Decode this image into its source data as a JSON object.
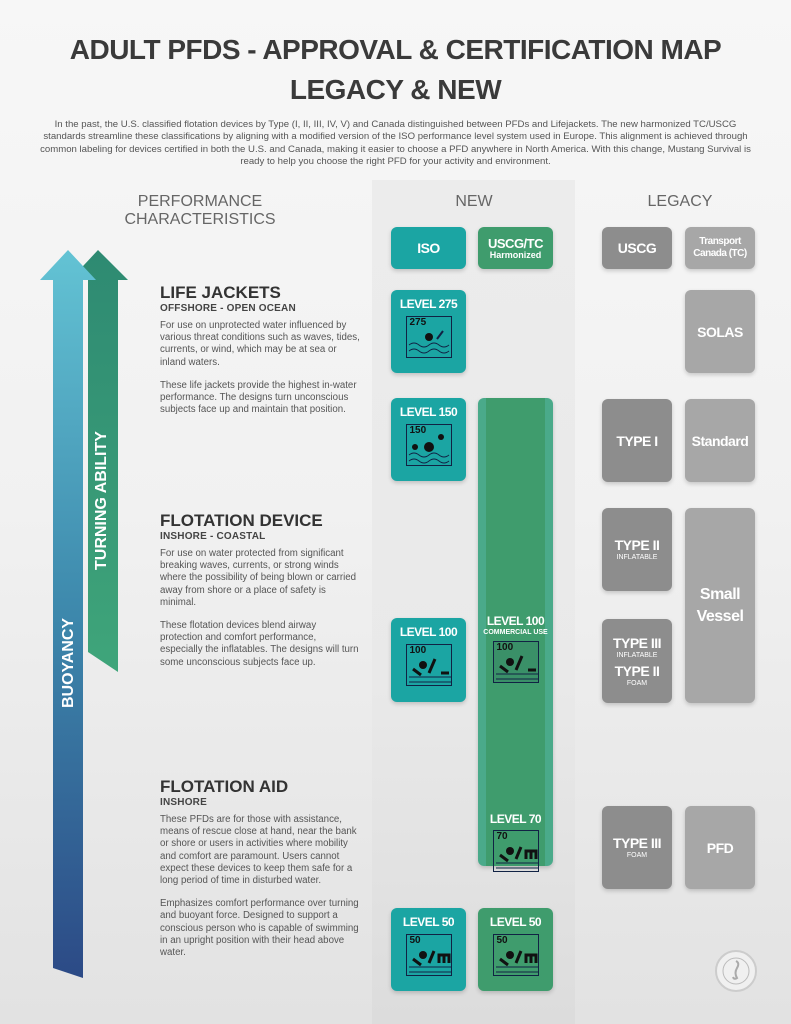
{
  "title": {
    "line1": "ADULT PFDS - APPROVAL & CERTIFICATION MAP",
    "line2": "LEGACY & NEW"
  },
  "intro": "In the past, the U.S. classified flotation devices by Type (I, II, III, IV, V) and Canada distinguished between PFDs and Lifejackets. The new harmonized TC/USCG standards streamline these classifications by aligning with a modified version of the ISO performance level system used in Europe. This alignment is achieved through common labeling for devices certified in both the U.S. and Canada, making it easier to choose a PFD anywhere in North America. With this change, Mustang Survival is ready to help you choose the right PFD for your activity and environment.",
  "headers": {
    "performance": "PERFORMANCE CHARACTERISTICS",
    "new": "NEW",
    "legacy": "LEGACY"
  },
  "arrows": {
    "buoyancy": "BUOYANCY",
    "turning": "TURNING ABILITY"
  },
  "sections": [
    {
      "title": "LIFE JACKETS",
      "subtitle": "OFFSHORE - OPEN OCEAN",
      "p1": "For use on unprotected water influenced by various threat conditions such as waves, tides, currents, or wind, which may be at sea or inland waters.",
      "p2": "These life jackets provide the highest in-water performance. The designs turn unconscious subjects face up and maintain that position."
    },
    {
      "title": "FLOTATION DEVICE",
      "subtitle": "INSHORE - COASTAL",
      "p1": "For use on water protected from significant breaking waves, currents, or strong winds where the possibility of being blown or carried away from shore or a place of safety is minimal.",
      "p2": "These flotation devices blend airway protection and comfort performance, especially the inflatables. The designs will turn some unconscious subjects face up."
    },
    {
      "title": "FLOTATION AID",
      "subtitle": "INSHORE",
      "p1": "These PFDs are for those with assistance, means of rescue close at hand, near the bank or shore or users in activities where mobility and comfort are paramount. Users cannot expect these devices to keep them safe for a long period of time in disturbed water.",
      "p2": "Emphasizes comfort performance over turning and buoyant force. Designed to support a conscious person who is capable of swimming in an upright position with their head above water."
    }
  ],
  "new": {
    "iso_label": "ISO",
    "harm_label": "USCG/TC",
    "harm_sub": "Harmonized",
    "iso_levels": [
      {
        "label": "LEVEL 275",
        "num": "275"
      },
      {
        "label": "LEVEL 150",
        "num": "150"
      },
      {
        "label": "LEVEL 100",
        "num": "100"
      },
      {
        "label": "LEVEL 50",
        "num": "50"
      }
    ],
    "harm_levels": [
      {
        "label": "LEVEL 100",
        "sub": "COMMERCIAL USE",
        "num": "100"
      },
      {
        "label": "LEVEL 70",
        "num": "70"
      },
      {
        "label": "LEVEL 50",
        "num": "50"
      }
    ]
  },
  "legacy": {
    "uscg_label": "USCG",
    "tc_label": "Transport Canada (TC)",
    "solas": "SOLAS",
    "type1": "TYPE I",
    "standard": "Standard",
    "type2": "TYPE II",
    "type2_sub": "INFLATABLE",
    "small_vessel": "Small Vessel",
    "type3": "TYPE III",
    "type3_sub": "INFLATABLE",
    "type2b": "TYPE II",
    "type2b_sub": "FOAM",
    "type3f": "TYPE III",
    "type3f_sub": "FOAM",
    "pfd": "PFD"
  },
  "logo": "MUSTANG SURVIVAL",
  "colors": {
    "teal": "#1ba5a3",
    "green": "#3f9c6d",
    "gray_dark": "#8d8d8d",
    "gray_light": "#a7a7a7"
  }
}
